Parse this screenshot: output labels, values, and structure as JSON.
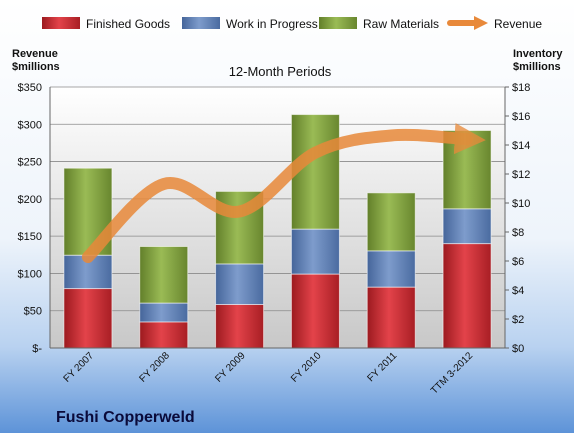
{
  "chart_data": {
    "type": "bar",
    "title": "12-Month Periods",
    "company": "Fushi Copperweld",
    "left_axis_label": [
      "Revenue",
      "$millions"
    ],
    "right_axis_label": [
      "Inventory",
      "$millions"
    ],
    "categories": [
      "FY 2007",
      "FY 2008",
      "FY 2009",
      "FY 2010",
      "FY 2011",
      "TTM 3-2012"
    ],
    "stacked": true,
    "revenue_axis": {
      "min": 0,
      "max": 350,
      "step": 50,
      "tick_labels": [
        "$-",
        "$50",
        "$100",
        "$150",
        "$200",
        "$250",
        "$300",
        "$350"
      ]
    },
    "inventory_axis": {
      "min": 0,
      "max": 18,
      "step": 2,
      "tick_labels": [
        "$0",
        "$2",
        "$4",
        "$6",
        "$8",
        "$10",
        "$12",
        "$14",
        "$16",
        "$18"
      ]
    },
    "series": [
      {
        "name": "Finished Goods",
        "axis": "inventory",
        "kind": "bar",
        "color": "#c0282d",
        "values": [
          4.1,
          1.8,
          3.0,
          5.1,
          4.2,
          7.2
        ]
      },
      {
        "name": "Work in Progress",
        "axis": "inventory",
        "kind": "bar",
        "color": "#5b7db5",
        "values": [
          2.3,
          1.3,
          2.8,
          3.1,
          2.5,
          2.4
        ]
      },
      {
        "name": "Raw Materials",
        "axis": "inventory",
        "kind": "bar",
        "color": "#7a9a3a",
        "values": [
          6.0,
          3.9,
          5.0,
          7.9,
          4.0,
          5.4
        ]
      },
      {
        "name": "Revenue",
        "axis": "revenue",
        "kind": "line",
        "color": "#e8893a",
        "values": [
          122,
          220,
          183,
          262,
          285,
          280
        ]
      }
    ],
    "grid": true,
    "legend_position": "top"
  }
}
